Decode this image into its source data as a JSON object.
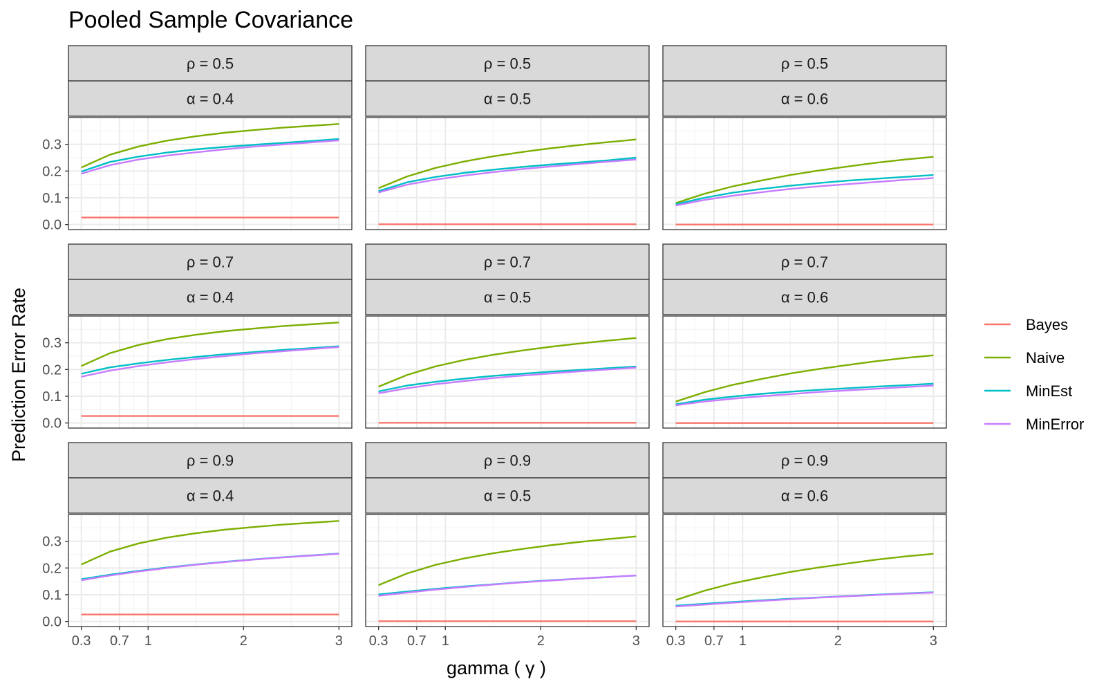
{
  "chart_data": {
    "type": "line",
    "title": "Pooled Sample Covariance",
    "xlabel": "gamma ( γ )",
    "ylabel": "Prediction Error Rate",
    "x_tick_labels": [
      "0.3",
      "0.7",
      "1",
      "2",
      "3"
    ],
    "x_ticks": [
      0.3,
      0.7,
      1,
      2,
      3
    ],
    "y_tick_labels": [
      "0.0",
      "0.1",
      "0.2",
      "0.3"
    ],
    "y_ticks": [
      0,
      0.1,
      0.2,
      0.3
    ],
    "xlim": [
      0.165,
      3.135
    ],
    "ylim": [
      -0.019,
      0.4
    ],
    "grid": true,
    "legend_position": "right",
    "x": [
      0.3,
      0.6,
      0.9,
      1.2,
      1.5,
      1.8,
      2.1,
      2.4,
      2.7,
      3.0
    ],
    "colors": {
      "Bayes": "#F8766D",
      "Naive": "#7CAE00",
      "MinEst": "#00BFC4",
      "MinError": "#C77CFF"
    },
    "legend": [
      "Bayes",
      "Naive",
      "MinEst",
      "MinError"
    ],
    "facet_rows": [
      {
        "strip": "ρ  = 0.5"
      },
      {
        "strip": "ρ  = 0.7"
      },
      {
        "strip": "ρ  = 0.9"
      }
    ],
    "facet_cols": [
      {
        "strip": "α  = 0.4"
      },
      {
        "strip": "α  = 0.5"
      },
      {
        "strip": "α  = 0.6"
      }
    ],
    "panels": [
      {
        "row": 0,
        "col": 0,
        "series": [
          {
            "name": "Bayes",
            "values": [
              0.026,
              0.026,
              0.026,
              0.026,
              0.026,
              0.026,
              0.026,
              0.026,
              0.026,
              0.026
            ]
          },
          {
            "name": "Naive",
            "values": [
              0.213,
              0.261,
              0.292,
              0.314,
              0.33,
              0.343,
              0.353,
              0.362,
              0.369,
              0.376
            ]
          },
          {
            "name": "MinEst",
            "values": [
              0.198,
              0.234,
              0.254,
              0.269,
              0.281,
              0.29,
              0.298,
              0.305,
              0.312,
              0.32
            ]
          },
          {
            "name": "MinError",
            "values": [
              0.19,
              0.222,
              0.243,
              0.258,
              0.27,
              0.281,
              0.291,
              0.299,
              0.307,
              0.315
            ]
          }
        ]
      },
      {
        "row": 0,
        "col": 1,
        "series": [
          {
            "name": "Bayes",
            "values": [
              0.001,
              0.001,
              0.001,
              0.001,
              0.001,
              0.001,
              0.001,
              0.001,
              0.001,
              0.001
            ]
          },
          {
            "name": "Naive",
            "values": [
              0.136,
              0.18,
              0.212,
              0.236,
              0.255,
              0.271,
              0.285,
              0.297,
              0.308,
              0.318
            ]
          },
          {
            "name": "MinEst",
            "values": [
              0.125,
              0.158,
              0.178,
              0.193,
              0.205,
              0.215,
              0.224,
              0.232,
              0.24,
              0.25
            ]
          },
          {
            "name": "MinError",
            "values": [
              0.12,
              0.149,
              0.168,
              0.183,
              0.196,
              0.207,
              0.217,
              0.226,
              0.235,
              0.243
            ]
          }
        ]
      },
      {
        "row": 0,
        "col": 2,
        "series": [
          {
            "name": "Bayes",
            "values": [
              0.0,
              0.0,
              0.0,
              0.0,
              0.0,
              0.0,
              0.0,
              0.0,
              0.0,
              0.0
            ]
          },
          {
            "name": "Naive",
            "values": [
              0.08,
              0.115,
              0.143,
              0.165,
              0.185,
              0.202,
              0.217,
              0.231,
              0.243,
              0.253
            ]
          },
          {
            "name": "MinEst",
            "values": [
              0.076,
              0.1,
              0.119,
              0.133,
              0.145,
              0.155,
              0.164,
              0.171,
              0.178,
              0.185
            ]
          },
          {
            "name": "MinError",
            "values": [
              0.071,
              0.092,
              0.108,
              0.121,
              0.133,
              0.143,
              0.151,
              0.159,
              0.167,
              0.174
            ]
          }
        ]
      },
      {
        "row": 1,
        "col": 0,
        "series": [
          {
            "name": "Bayes",
            "values": [
              0.026,
              0.026,
              0.026,
              0.026,
              0.026,
              0.026,
              0.026,
              0.026,
              0.026,
              0.026
            ]
          },
          {
            "name": "Naive",
            "values": [
              0.213,
              0.261,
              0.292,
              0.314,
              0.33,
              0.343,
              0.353,
              0.362,
              0.369,
              0.376
            ]
          },
          {
            "name": "MinEst",
            "values": [
              0.184,
              0.208,
              0.223,
              0.236,
              0.247,
              0.257,
              0.265,
              0.273,
              0.28,
              0.287
            ]
          },
          {
            "name": "MinError",
            "values": [
              0.173,
              0.196,
              0.213,
              0.227,
              0.239,
              0.25,
              0.26,
              0.268,
              0.276,
              0.284
            ]
          }
        ]
      },
      {
        "row": 1,
        "col": 1,
        "series": [
          {
            "name": "Bayes",
            "values": [
              0.001,
              0.001,
              0.001,
              0.001,
              0.001,
              0.001,
              0.001,
              0.001,
              0.001,
              0.001
            ]
          },
          {
            "name": "Naive",
            "values": [
              0.136,
              0.18,
              0.212,
              0.236,
              0.255,
              0.271,
              0.285,
              0.297,
              0.308,
              0.318
            ]
          },
          {
            "name": "MinEst",
            "values": [
              0.118,
              0.14,
              0.154,
              0.166,
              0.176,
              0.184,
              0.192,
              0.198,
              0.205,
              0.211
            ]
          },
          {
            "name": "MinError",
            "values": [
              0.111,
              0.13,
              0.145,
              0.157,
              0.168,
              0.177,
              0.185,
              0.193,
              0.2,
              0.207
            ]
          }
        ]
      },
      {
        "row": 1,
        "col": 2,
        "series": [
          {
            "name": "Bayes",
            "values": [
              0.0,
              0.0,
              0.0,
              0.0,
              0.0,
              0.0,
              0.0,
              0.0,
              0.0,
              0.0
            ]
          },
          {
            "name": "Naive",
            "values": [
              0.08,
              0.115,
              0.143,
              0.165,
              0.185,
              0.202,
              0.217,
              0.231,
              0.243,
              0.253
            ]
          },
          {
            "name": "MinEst",
            "values": [
              0.07,
              0.087,
              0.099,
              0.109,
              0.117,
              0.124,
              0.13,
              0.136,
              0.141,
              0.147
            ]
          },
          {
            "name": "MinError",
            "values": [
              0.066,
              0.08,
              0.091,
              0.1,
              0.108,
              0.116,
              0.122,
              0.128,
              0.134,
              0.14
            ]
          }
        ]
      },
      {
        "row": 2,
        "col": 0,
        "series": [
          {
            "name": "Bayes",
            "values": [
              0.026,
              0.026,
              0.026,
              0.026,
              0.026,
              0.026,
              0.026,
              0.026,
              0.026,
              0.026
            ]
          },
          {
            "name": "Naive",
            "values": [
              0.213,
              0.261,
              0.292,
              0.314,
              0.33,
              0.343,
              0.353,
              0.362,
              0.369,
              0.376
            ]
          },
          {
            "name": "MinEst",
            "values": [
              0.158,
              0.175,
              0.189,
              0.202,
              0.213,
              0.223,
              0.232,
              0.24,
              0.247,
              0.254
            ]
          },
          {
            "name": "MinError",
            "values": [
              0.154,
              0.172,
              0.187,
              0.2,
              0.212,
              0.222,
              0.231,
              0.239,
              0.246,
              0.253
            ]
          }
        ]
      },
      {
        "row": 2,
        "col": 1,
        "series": [
          {
            "name": "Bayes",
            "values": [
              0.001,
              0.001,
              0.001,
              0.001,
              0.001,
              0.001,
              0.001,
              0.001,
              0.001,
              0.001
            ]
          },
          {
            "name": "Naive",
            "values": [
              0.136,
              0.18,
              0.212,
              0.236,
              0.255,
              0.271,
              0.285,
              0.297,
              0.308,
              0.318
            ]
          },
          {
            "name": "MinEst",
            "values": [
              0.101,
              0.112,
              0.122,
              0.131,
              0.139,
              0.147,
              0.154,
              0.16,
              0.166,
              0.172
            ]
          },
          {
            "name": "MinError",
            "values": [
              0.096,
              0.108,
              0.119,
              0.129,
              0.138,
              0.146,
              0.153,
              0.16,
              0.166,
              0.172
            ]
          }
        ]
      },
      {
        "row": 2,
        "col": 2,
        "series": [
          {
            "name": "Bayes",
            "values": [
              0.0,
              0.0,
              0.0,
              0.0,
              0.0,
              0.0,
              0.0,
              0.0,
              0.0,
              0.0
            ]
          },
          {
            "name": "Naive",
            "values": [
              0.08,
              0.115,
              0.143,
              0.165,
              0.185,
              0.202,
              0.217,
              0.231,
              0.243,
              0.253
            ]
          },
          {
            "name": "MinEst",
            "values": [
              0.059,
              0.066,
              0.073,
              0.079,
              0.085,
              0.09,
              0.095,
              0.1,
              0.105,
              0.109
            ]
          },
          {
            "name": "MinError",
            "values": [
              0.056,
              0.063,
              0.07,
              0.077,
              0.083,
              0.089,
              0.094,
              0.099,
              0.104,
              0.108
            ]
          }
        ]
      }
    ]
  }
}
